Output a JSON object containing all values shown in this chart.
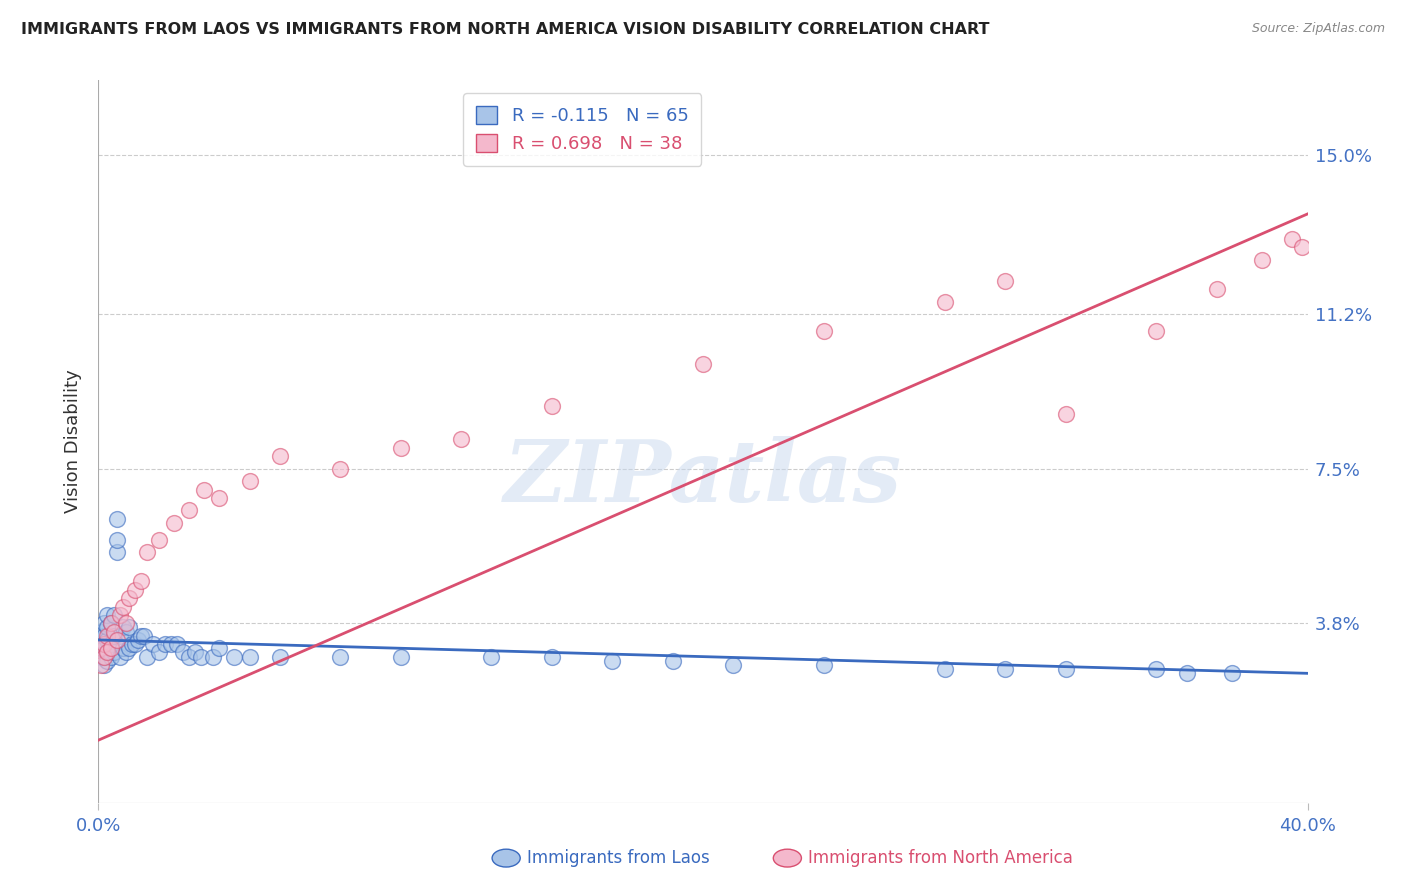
{
  "title": "IMMIGRANTS FROM LAOS VS IMMIGRANTS FROM NORTH AMERICA VISION DISABILITY CORRELATION CHART",
  "source": "Source: ZipAtlas.com",
  "ylabel": "Vision Disability",
  "xlim": [
    0.0,
    0.4
  ],
  "ylim": [
    -0.005,
    0.168
  ],
  "ytick_positions": [
    0.038,
    0.075,
    0.112,
    0.15
  ],
  "ytick_labels": [
    "3.8%",
    "7.5%",
    "11.2%",
    "15.0%"
  ],
  "blue_R": -0.115,
  "blue_N": 65,
  "pink_R": 0.698,
  "pink_N": 38,
  "blue_label": "Immigrants from Laos",
  "pink_label": "Immigrants from North America",
  "blue_color": "#a8c4e8",
  "pink_color": "#f4b8cc",
  "blue_line_color": "#3a6abf",
  "pink_line_color": "#d94f70",
  "watermark": "ZIPatlas",
  "blue_x": [
    0.001,
    0.001,
    0.001,
    0.001,
    0.002,
    0.002,
    0.002,
    0.002,
    0.002,
    0.003,
    0.003,
    0.003,
    0.003,
    0.003,
    0.004,
    0.004,
    0.004,
    0.005,
    0.005,
    0.005,
    0.006,
    0.006,
    0.006,
    0.007,
    0.007,
    0.008,
    0.008,
    0.009,
    0.009,
    0.01,
    0.01,
    0.011,
    0.012,
    0.013,
    0.014,
    0.015,
    0.016,
    0.018,
    0.02,
    0.022,
    0.024,
    0.026,
    0.028,
    0.03,
    0.032,
    0.034,
    0.038,
    0.04,
    0.045,
    0.05,
    0.06,
    0.08,
    0.1,
    0.13,
    0.15,
    0.17,
    0.19,
    0.21,
    0.24,
    0.28,
    0.3,
    0.32,
    0.35,
    0.36,
    0.375
  ],
  "blue_y": [
    0.03,
    0.032,
    0.034,
    0.036,
    0.028,
    0.03,
    0.032,
    0.035,
    0.038,
    0.029,
    0.031,
    0.034,
    0.037,
    0.04,
    0.03,
    0.033,
    0.038,
    0.031,
    0.035,
    0.04,
    0.055,
    0.058,
    0.063,
    0.03,
    0.035,
    0.032,
    0.037,
    0.031,
    0.036,
    0.032,
    0.037,
    0.033,
    0.033,
    0.034,
    0.035,
    0.035,
    0.03,
    0.033,
    0.031,
    0.033,
    0.033,
    0.033,
    0.031,
    0.03,
    0.031,
    0.03,
    0.03,
    0.032,
    0.03,
    0.03,
    0.03,
    0.03,
    0.03,
    0.03,
    0.03,
    0.029,
    0.029,
    0.028,
    0.028,
    0.027,
    0.027,
    0.027,
    0.027,
    0.026,
    0.026
  ],
  "pink_x": [
    0.001,
    0.001,
    0.002,
    0.002,
    0.003,
    0.003,
    0.004,
    0.004,
    0.005,
    0.006,
    0.007,
    0.008,
    0.009,
    0.01,
    0.012,
    0.014,
    0.016,
    0.02,
    0.025,
    0.03,
    0.035,
    0.04,
    0.05,
    0.06,
    0.08,
    0.1,
    0.12,
    0.15,
    0.2,
    0.24,
    0.28,
    0.3,
    0.32,
    0.35,
    0.37,
    0.385,
    0.395,
    0.398
  ],
  "pink_y": [
    0.028,
    0.032,
    0.03,
    0.033,
    0.031,
    0.035,
    0.032,
    0.038,
    0.036,
    0.034,
    0.04,
    0.042,
    0.038,
    0.044,
    0.046,
    0.048,
    0.055,
    0.058,
    0.062,
    0.065,
    0.07,
    0.068,
    0.072,
    0.078,
    0.075,
    0.08,
    0.082,
    0.09,
    0.1,
    0.108,
    0.115,
    0.12,
    0.088,
    0.108,
    0.118,
    0.125,
    0.13,
    0.128
  ]
}
